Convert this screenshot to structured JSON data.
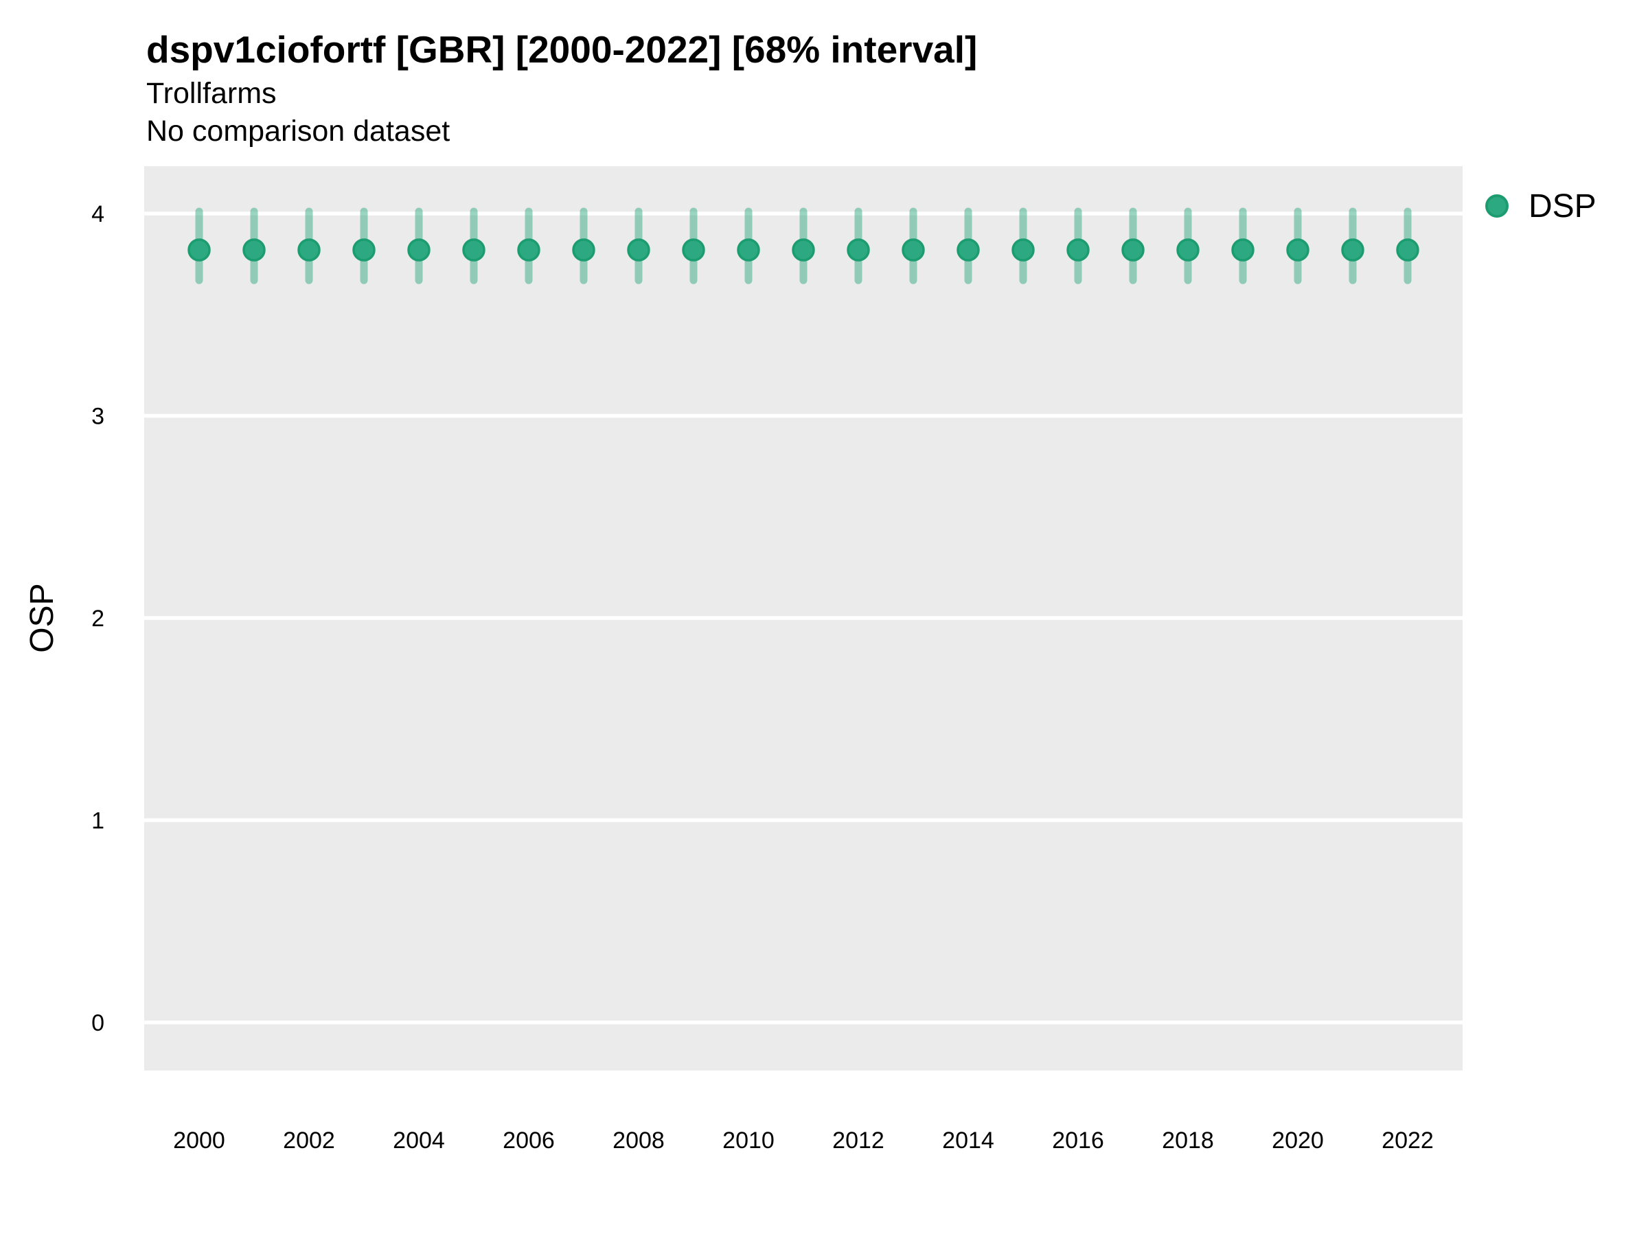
{
  "page": {
    "background": "#FFFFFF"
  },
  "header": {
    "title": "dspv1ciofortf [GBR] [2000-2022] [68% interval]",
    "subtitle": "Trollfarms",
    "note": "No comparison dataset"
  },
  "chart_data": {
    "type": "pointrange",
    "title": "dspv1ciofortf [GBR] [2000-2022] [68% interval]",
    "subtitle": "Trollfarms",
    "annotation": "No comparison dataset",
    "xlabel": "",
    "ylabel": "OSP",
    "legend_position": "right-top",
    "legend": [
      {
        "label": "DSP",
        "color": "#2CA980"
      }
    ],
    "x": [
      2000,
      2001,
      2002,
      2003,
      2004,
      2005,
      2006,
      2007,
      2008,
      2009,
      2010,
      2011,
      2012,
      2013,
      2014,
      2015,
      2016,
      2017,
      2018,
      2019,
      2020,
      2021,
      2022
    ],
    "series": [
      {
        "name": "DSP",
        "values": [
          3.82,
          3.82,
          3.82,
          3.82,
          3.82,
          3.82,
          3.82,
          3.82,
          3.82,
          3.82,
          3.82,
          3.82,
          3.82,
          3.82,
          3.82,
          3.82,
          3.82,
          3.82,
          3.82,
          3.82,
          3.82,
          3.82,
          3.82
        ],
        "lo": [
          3.67,
          3.67,
          3.67,
          3.67,
          3.67,
          3.67,
          3.67,
          3.67,
          3.67,
          3.67,
          3.67,
          3.67,
          3.67,
          3.67,
          3.67,
          3.67,
          3.67,
          3.67,
          3.67,
          3.67,
          3.67,
          3.67,
          3.67
        ],
        "hi": [
          4.01,
          4.01,
          4.01,
          4.01,
          4.01,
          4.01,
          4.01,
          4.01,
          4.01,
          4.01,
          4.01,
          4.01,
          4.01,
          4.01,
          4.01,
          4.01,
          4.01,
          4.01,
          4.01,
          4.01,
          4.01,
          4.01,
          4.01
        ]
      }
    ],
    "interval_percent": 68,
    "ylim": [
      -0.24,
      4.23
    ],
    "yticks": [
      0,
      1,
      2,
      3,
      4
    ],
    "xticks": [
      2000,
      2002,
      2004,
      2006,
      2008,
      2010,
      2012,
      2014,
      2016,
      2018,
      2020,
      2022
    ],
    "grid": "horizontal-major-only",
    "colors": {
      "panel_bg": "#EBEBEB",
      "grid_line": "#FFFFFF",
      "point_fill": "#2CA980",
      "point_stroke": "#1D9C70",
      "range_line": "rgba(42,168,126,0.48)",
      "text": "#000000"
    }
  }
}
